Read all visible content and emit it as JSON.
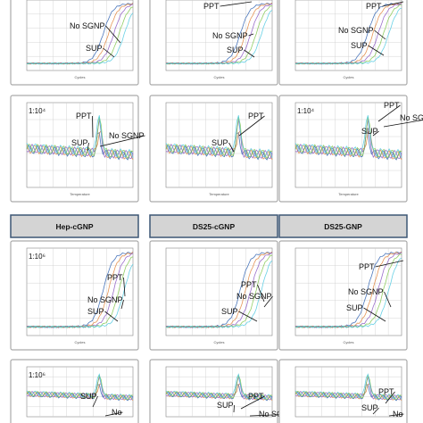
{
  "headers": [
    "Hep-cGNP",
    "DS25-cGNP",
    "DS25-GNP"
  ],
  "panels": [
    {
      "kind": "amplification",
      "axis_label": "Cycles",
      "annotations": [
        "No SGNP",
        "SUP"
      ]
    },
    {
      "kind": "amplification",
      "axis_label": "Cycles",
      "annotations": [
        "PPT",
        "No SGNP",
        "SUP"
      ]
    },
    {
      "kind": "amplification",
      "axis_label": "Cycles",
      "annotations": [
        "PPT",
        "No SGNP",
        "SUP"
      ]
    },
    {
      "kind": "melt",
      "label": "1:10⁴",
      "axis_label": "Temperature",
      "annotations": [
        "PPT",
        "No SGNP",
        "SUP"
      ]
    },
    {
      "kind": "melt",
      "axis_label": "Temperature",
      "annotations": [
        "PPT",
        "SUP"
      ]
    },
    {
      "kind": "melt",
      "label": "1:10⁴",
      "axis_label": "Temperature",
      "annotations": [
        "PPT",
        "No SGNP",
        "SUP"
      ]
    },
    {
      "kind": "amplification",
      "label": "1:10⁶",
      "axis_label": "Cycles",
      "annotations": [
        "PPT",
        "No SGNP",
        "SUP"
      ]
    },
    {
      "kind": "amplification",
      "axis_label": "Cycles",
      "annotations": [
        "PPT",
        "No SGNP",
        "SUP"
      ]
    },
    {
      "kind": "amplification",
      "axis_label": "Cycles",
      "annotations": [
        "PPT",
        "No SGNP",
        "SUP"
      ]
    },
    {
      "kind": "melt",
      "label": "1:10⁶",
      "annotations": [
        "SUP",
        "No"
      ]
    },
    {
      "kind": "melt",
      "annotations": [
        "PPT",
        "SUP",
        "No SGNP"
      ]
    },
    {
      "kind": "melt",
      "annotations": [
        "PPT",
        "SUP",
        "No"
      ]
    }
  ]
}
